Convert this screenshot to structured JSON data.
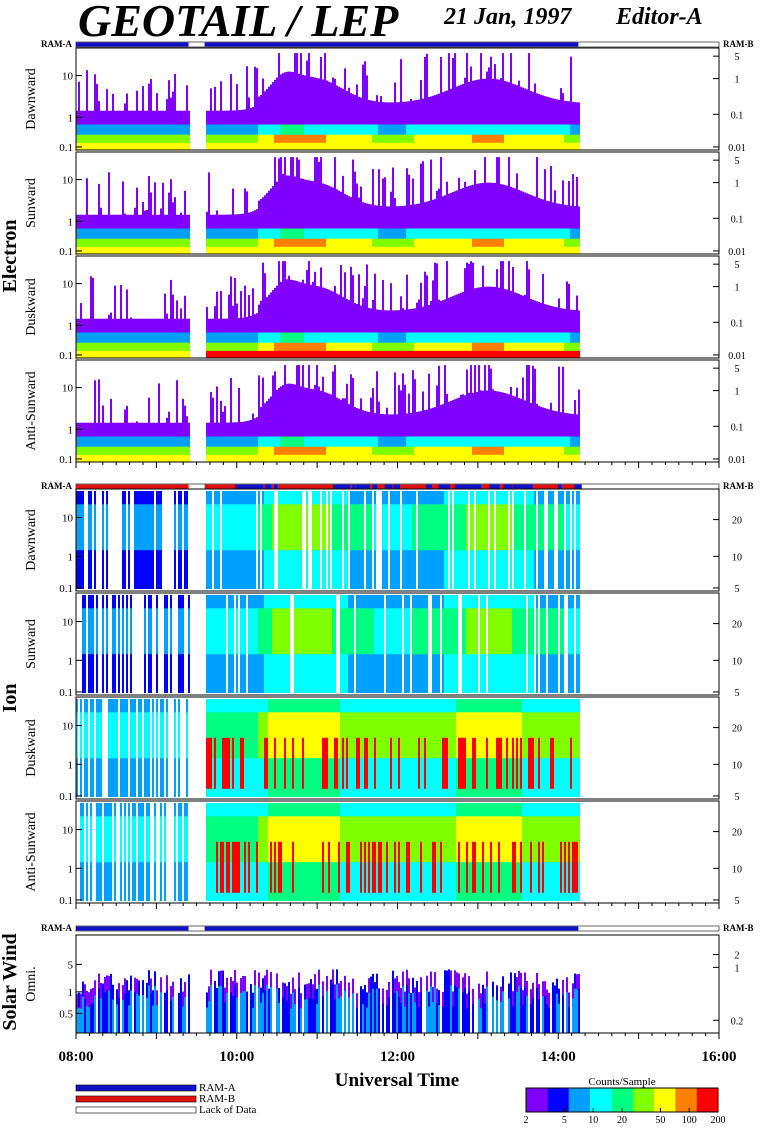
{
  "header": {
    "title": "GEOTAIL / LEP",
    "date": "21 Jan, 1997",
    "editor": "Editor-A"
  },
  "chart_data": {
    "type": "heatmap",
    "x_axis": {
      "label": "Universal Time",
      "range": [
        "08:00",
        "16:00"
      ],
      "tick_labels": [
        "08:00",
        "10:00",
        "12:00",
        "14:00",
        "16:00"
      ]
    },
    "data_coverage": {
      "start": "08:00",
      "gap": [
        "09:24",
        "09:36"
      ],
      "end": "14:15"
    },
    "ram_labels": {
      "a": "RAM-A",
      "b": "RAM-B"
    },
    "groups": [
      {
        "name": "Electron",
        "panels": [
          {
            "label": "Dawnward",
            "left_ticks": [
              "10",
              "1",
              "0.1"
            ],
            "right_ticks": [
              "5",
              "1",
              "0.1",
              "0.01"
            ]
          },
          {
            "label": "Sunward",
            "left_ticks": [
              "10",
              "1",
              "0.1"
            ],
            "right_ticks": [
              "5",
              "1",
              "0.1",
              "0.01"
            ]
          },
          {
            "label": "Duskward",
            "left_ticks": [
              "10",
              "1",
              "0.1"
            ],
            "right_ticks": [
              "5",
              "1",
              "0.1",
              "0.01"
            ]
          },
          {
            "label": "Anti-Sunward",
            "left_ticks": [
              "10",
              "1",
              "0.1"
            ],
            "right_ticks": [
              "5",
              "1",
              "0.1",
              "0.01"
            ]
          }
        ]
      },
      {
        "name": "Ion",
        "panels": [
          {
            "label": "Dawnward",
            "left_ticks": [
              "10",
              "1",
              "0.1"
            ],
            "right_ticks": [
              "20",
              "10",
              "5"
            ]
          },
          {
            "label": "Sunward",
            "left_ticks": [
              "10",
              "1",
              "0.1"
            ],
            "right_ticks": [
              "20",
              "10",
              "5"
            ]
          },
          {
            "label": "Duskward",
            "left_ticks": [
              "10",
              "1",
              "0.1"
            ],
            "right_ticks": [
              "20",
              "10",
              "5"
            ]
          },
          {
            "label": "Anti-Sunward",
            "left_ticks": [
              "10",
              "1",
              "0.1"
            ],
            "right_ticks": [
              "20",
              "10",
              "5"
            ]
          }
        ]
      },
      {
        "name": "Solar Wind",
        "panels": [
          {
            "label": "Omni.",
            "left_ticks": [
              "5",
              "1",
              "0.5"
            ],
            "right_ticks": [
              "2",
              "1",
              "0.2"
            ]
          }
        ]
      }
    ],
    "legend": {
      "entries": [
        "RAM-A",
        "RAM-B",
        "Lack of Data"
      ],
      "colors": [
        "#1010c8",
        "#e01010",
        "#ffffff"
      ]
    },
    "colorbar": {
      "title": "Counts/Sample",
      "tick_labels": [
        "2",
        "5",
        "10",
        "20",
        "50",
        "100",
        "200"
      ],
      "colors": [
        "#8000ff",
        "#0000ff",
        "#00a0ff",
        "#00ffff",
        "#00ff80",
        "#80ff00",
        "#ffff00",
        "#ff8000",
        "#ff0000"
      ]
    }
  }
}
